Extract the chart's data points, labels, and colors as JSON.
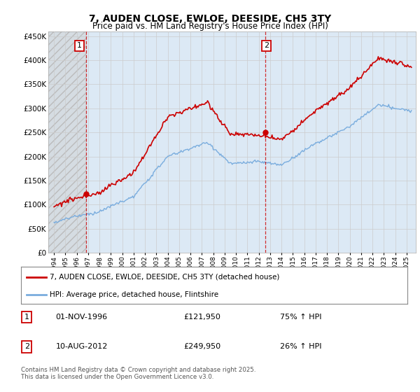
{
  "title": "7, AUDEN CLOSE, EWLOE, DEESIDE, CH5 3TY",
  "subtitle": "Price paid vs. HM Land Registry's House Price Index (HPI)",
  "legend_line1": "7, AUDEN CLOSE, EWLOE, DEESIDE, CH5 3TY (detached house)",
  "legend_line2": "HPI: Average price, detached house, Flintshire",
  "sale1_date": "01-NOV-1996",
  "sale1_price": "£121,950",
  "sale1_hpi": "75% ↑ HPI",
  "sale2_date": "10-AUG-2012",
  "sale2_price": "£249,950",
  "sale2_hpi": "26% ↑ HPI",
  "footer": "Contains HM Land Registry data © Crown copyright and database right 2025.\nThis data is licensed under the Open Government Licence v3.0.",
  "hpi_color": "#7aadde",
  "price_color": "#cc0000",
  "vline_color": "#cc0000",
  "grid_color": "#cccccc",
  "bg_color": "#ffffff",
  "plot_bg": "#dce9f5",
  "plot_bg_outside": "#e8e8e8",
  "ylim": [
    0,
    460000
  ],
  "yticks": [
    0,
    50000,
    100000,
    150000,
    200000,
    250000,
    300000,
    350000,
    400000,
    450000
  ],
  "sale1_year": 1996.833,
  "sale1_price_val": 121950,
  "sale2_year": 2012.583,
  "sale2_price_val": 249950
}
